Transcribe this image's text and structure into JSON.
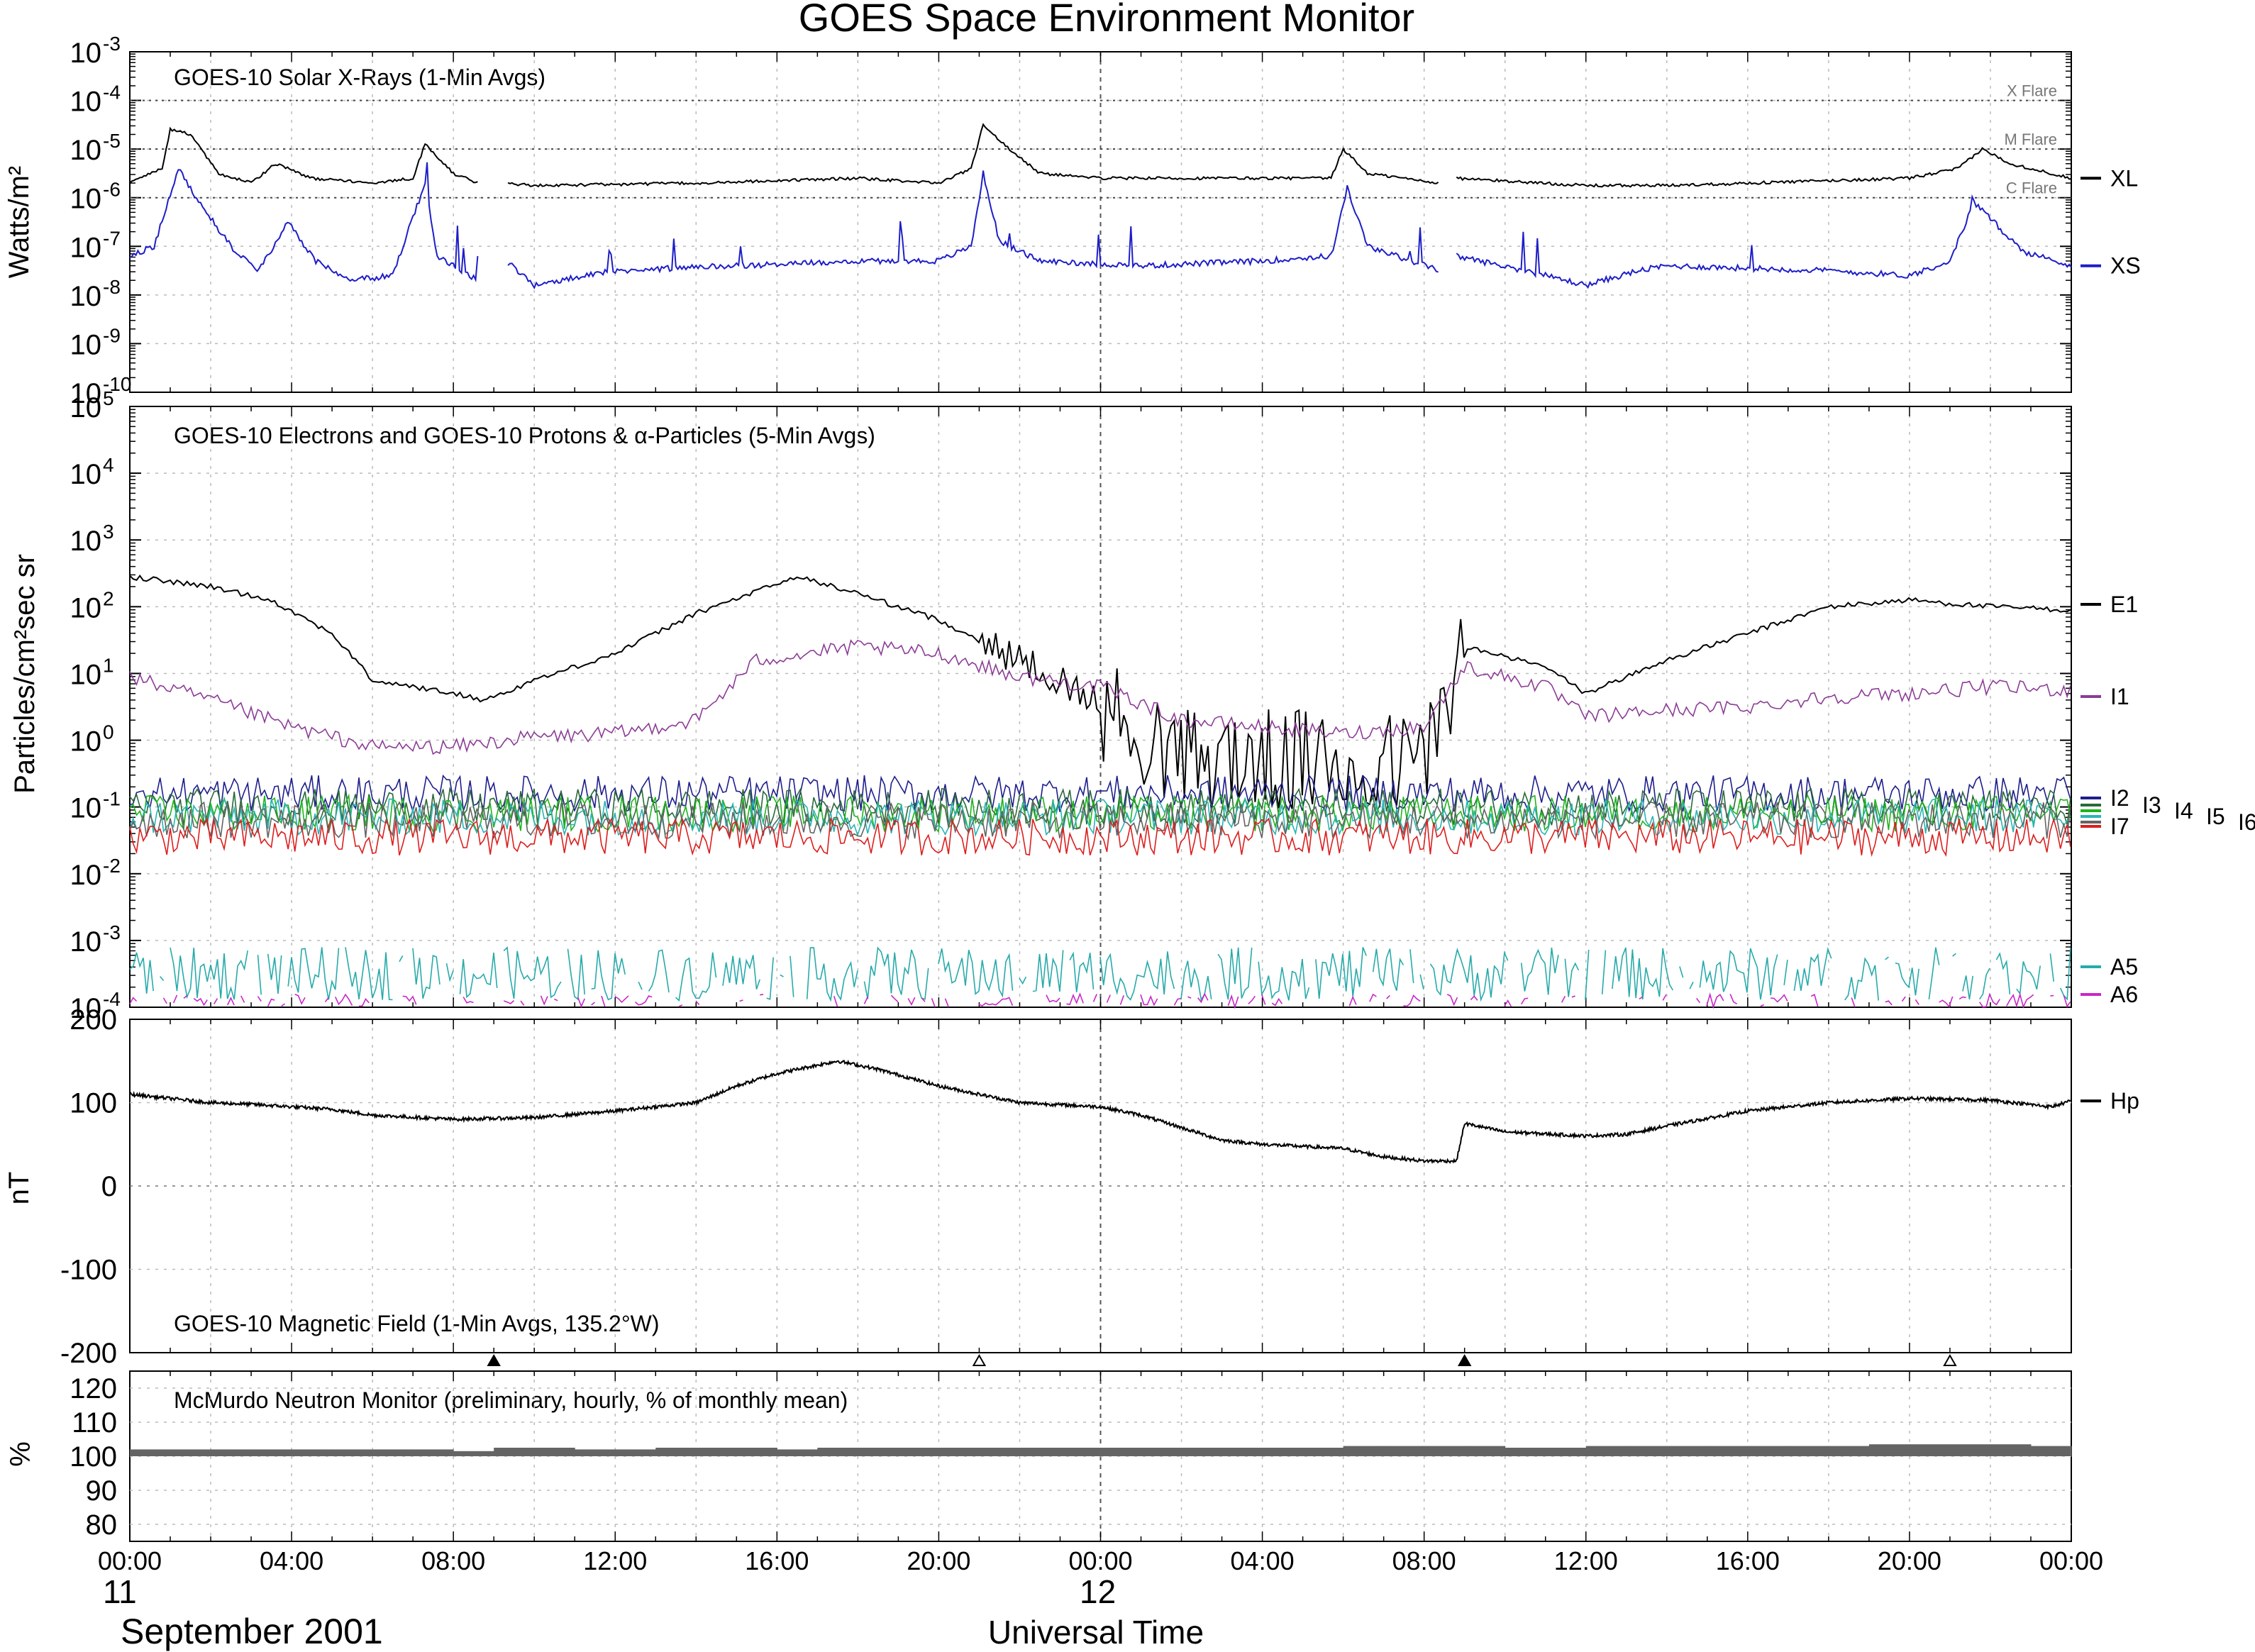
{
  "title": "GOES Space Environment Monitor",
  "x_axis": {
    "tick_labels": [
      "00:00",
      "04:00",
      "08:00",
      "12:00",
      "16:00",
      "20:00",
      "00:00",
      "04:00",
      "08:00",
      "12:00",
      "16:00",
      "20:00",
      "00:00"
    ],
    "day_labels": [
      "11",
      "12"
    ],
    "month_label": "September 2001",
    "xlabel": "Universal Time"
  },
  "chart_data": [
    {
      "type": "line",
      "title": "GOES-10 Solar X-Rays (1-Min Avgs)",
      "ylabel": "Watts/m²",
      "yscale": "log",
      "ylim": [
        1e-10,
        0.001
      ],
      "ytick_bases": [
        "10",
        "10",
        "10",
        "10",
        "10",
        "10",
        "10",
        "10"
      ],
      "ytick_exps": [
        "-3",
        "-4",
        "-5",
        "-6",
        "-7",
        "-8",
        "-9",
        "-10"
      ],
      "xlim_hours": [
        0,
        48
      ],
      "thresholds": [
        {
          "label": "X Flare",
          "value": 0.0001
        },
        {
          "label": "M Flare",
          "value": 1e-05
        },
        {
          "label": "C Flare",
          "value": 1e-06
        }
      ],
      "series": [
        {
          "name": "XL",
          "color": "#000000",
          "gaps": [
            [
              8.6,
              9.3
            ],
            [
              32.4,
              32.8
            ]
          ],
          "points": [
            [
              0,
              -5.7
            ],
            [
              0.8,
              -5.4
            ],
            [
              1.0,
              -4.6
            ],
            [
              1.5,
              -4.7
            ],
            [
              2.2,
              -5.5
            ],
            [
              3.0,
              -5.7
            ],
            [
              3.6,
              -5.3
            ],
            [
              4.5,
              -5.6
            ],
            [
              6.0,
              -5.7
            ],
            [
              7.0,
              -5.6
            ],
            [
              7.3,
              -4.9
            ],
            [
              8.0,
              -5.5
            ],
            [
              8.6,
              -5.7
            ],
            [
              9.3,
              -5.7
            ],
            [
              10,
              -5.75
            ],
            [
              14,
              -5.7
            ],
            [
              18,
              -5.6
            ],
            [
              20,
              -5.7
            ],
            [
              20.8,
              -5.4
            ],
            [
              21.1,
              -4.5
            ],
            [
              21.6,
              -4.9
            ],
            [
              22.5,
              -5.5
            ],
            [
              24,
              -5.6
            ],
            [
              28,
              -5.6
            ],
            [
              29.7,
              -5.6
            ],
            [
              30.0,
              -5.0
            ],
            [
              30.6,
              -5.5
            ],
            [
              32.4,
              -5.7
            ],
            [
              32.8,
              -5.6
            ],
            [
              36,
              -5.75
            ],
            [
              38,
              -5.75
            ],
            [
              40,
              -5.7
            ],
            [
              44,
              -5.6
            ],
            [
              45.2,
              -5.4
            ],
            [
              45.8,
              -5.0
            ],
            [
              46.5,
              -5.3
            ],
            [
              48,
              -5.6
            ]
          ]
        },
        {
          "name": "XS",
          "color": "#1e1ec8",
          "gaps": [
            [
              8.6,
              9.3
            ],
            [
              32.4,
              32.8
            ]
          ],
          "points": [
            [
              0,
              -7.2
            ],
            [
              0.6,
              -7.0
            ],
            [
              1.2,
              -5.4
            ],
            [
              1.8,
              -6.2
            ],
            [
              2.5,
              -7.0
            ],
            [
              3.2,
              -7.5
            ],
            [
              3.9,
              -6.5
            ],
            [
              4.6,
              -7.3
            ],
            [
              5.5,
              -7.7
            ],
            [
              6.5,
              -7.6
            ],
            [
              7.3,
              -5.7
            ],
            [
              7.6,
              -7.2
            ],
            [
              8.6,
              -7.7
            ],
            [
              9.3,
              -7.3
            ],
            [
              10,
              -7.8
            ],
            [
              12,
              -7.5
            ],
            [
              15,
              -7.4
            ],
            [
              18,
              -7.3
            ],
            [
              20,
              -7.3
            ],
            [
              20.8,
              -7.0
            ],
            [
              21.1,
              -5.5
            ],
            [
              21.5,
              -6.9
            ],
            [
              22.5,
              -7.3
            ],
            [
              25,
              -7.4
            ],
            [
              28,
              -7.3
            ],
            [
              29.7,
              -7.2
            ],
            [
              30.1,
              -5.8
            ],
            [
              30.6,
              -7.0
            ],
            [
              32.4,
              -7.5
            ],
            [
              32.8,
              -7.2
            ],
            [
              34.5,
              -7.5
            ],
            [
              36,
              -7.8
            ],
            [
              37.3,
              -7.5
            ],
            [
              38,
              -7.4
            ],
            [
              42,
              -7.5
            ],
            [
              44,
              -7.6
            ],
            [
              45,
              -7.3
            ],
            [
              45.6,
              -6.1
            ],
            [
              46.8,
              -7.1
            ],
            [
              48,
              -7.4
            ]
          ]
        }
      ]
    },
    {
      "type": "line",
      "title": "GOES-10 Electrons and GOES-10 Protons & α-Particles (5-Min Avgs)",
      "ylabel": "Particles/cm²sec sr",
      "yscale": "log",
      "ylim": [
        0.0001,
        100000.0
      ],
      "ytick_bases": [
        "10",
        "10",
        "10",
        "10",
        "10",
        "10",
        "10",
        "10",
        "10",
        "10"
      ],
      "ytick_exps": [
        "5",
        "4",
        "3",
        "2",
        "1",
        "0",
        "-1",
        "-2",
        "-3",
        "-4"
      ],
      "xlim_hours": [
        0,
        48
      ],
      "series": [
        {
          "name": "E1",
          "color": "#000000",
          "points": [
            [
              0,
              2.45
            ],
            [
              2,
              2.3
            ],
            [
              3.5,
              2.1
            ],
            [
              5,
              1.6
            ],
            [
              6,
              0.9
            ],
            [
              7,
              0.8
            ],
            [
              8,
              0.7
            ],
            [
              8.8,
              0.6
            ],
            [
              10,
              0.9
            ],
            [
              12,
              1.3
            ],
            [
              14,
              1.9
            ],
            [
              16.5,
              2.45
            ],
            [
              18,
              2.2
            ],
            [
              20,
              1.8
            ],
            [
              21,
              1.5
            ],
            [
              22,
              1.2
            ],
            [
              23,
              0.9
            ],
            [
              24,
              0.5
            ],
            [
              26,
              -0.3
            ],
            [
              28,
              -0.3
            ],
            [
              30,
              -0.4
            ],
            [
              32,
              -0.3
            ],
            [
              33,
              1.4
            ],
            [
              35,
              1.1
            ],
            [
              36,
              0.7
            ],
            [
              38,
              1.2
            ],
            [
              40,
              1.6
            ],
            [
              42,
              2.0
            ],
            [
              44,
              2.1
            ],
            [
              46,
              2.0
            ],
            [
              48,
              1.95
            ]
          ]
        },
        {
          "name": "I1",
          "color": "#8c3c96",
          "points": [
            [
              0,
              0.95
            ],
            [
              2,
              0.6
            ],
            [
              4,
              0.2
            ],
            [
              6,
              -0.1
            ],
            [
              8,
              -0.1
            ],
            [
              10,
              0.05
            ],
            [
              12,
              0.1
            ],
            [
              14,
              0.3
            ],
            [
              15.5,
              1.2
            ],
            [
              18,
              1.4
            ],
            [
              20,
              1.3
            ],
            [
              22,
              0.95
            ],
            [
              24,
              0.8
            ],
            [
              26,
              0.3
            ],
            [
              28,
              0.2
            ],
            [
              30,
              0.1
            ],
            [
              32,
              0.2
            ],
            [
              33,
              1.1
            ],
            [
              35,
              0.8
            ],
            [
              36,
              0.35
            ],
            [
              38,
              0.45
            ],
            [
              40,
              0.5
            ],
            [
              42,
              0.65
            ],
            [
              44,
              0.7
            ],
            [
              46,
              0.8
            ],
            [
              48,
              0.75
            ]
          ]
        },
        {
          "name": "I2",
          "color": "#1e1e8c",
          "points": [
            [
              0,
              -0.8
            ],
            [
              48,
              -0.8
            ]
          ]
        },
        {
          "name": "I3",
          "color": "#2a6a3a",
          "points": [
            [
              0,
              -1.0
            ],
            [
              48,
              -1.0
            ]
          ]
        },
        {
          "name": "I4",
          "color": "#1eb41e",
          "points": [
            [
              0,
              -1.1
            ],
            [
              48,
              -1.1
            ]
          ]
        },
        {
          "name": "I5",
          "color": "#2ab4b4",
          "points": [
            [
              0,
              -1.15
            ],
            [
              48,
              -1.15
            ]
          ]
        },
        {
          "name": "I6",
          "color": "#646464",
          "points": [
            [
              0,
              -1.2
            ],
            [
              48,
              -1.2
            ]
          ]
        },
        {
          "name": "I7",
          "color": "#dc1e1e",
          "points": [
            [
              0,
              -1.45
            ],
            [
              48,
              -1.45
            ]
          ]
        },
        {
          "name": "A5",
          "color": "#28aaaa",
          "points": [
            [
              0,
              -3.5
            ],
            [
              48,
              -3.5
            ]
          ]
        },
        {
          "name": "A6",
          "color": "#c828c8",
          "points": [
            [
              0,
              -3.95
            ],
            [
              48,
              -3.95
            ]
          ]
        }
      ],
      "legend_order": [
        "E1",
        "I1",
        "I2",
        "I3",
        "I4",
        "I5",
        "I6",
        "I7",
        "A5",
        "A6"
      ]
    },
    {
      "type": "line",
      "title": "GOES-10 Magnetic Field (1-Min Avgs, 135.2°W)",
      "ylabel": "nT",
      "yscale": "linear",
      "ylim": [
        -200,
        200
      ],
      "ytick_labels": [
        "200",
        "100",
        "0",
        "-100",
        "-200"
      ],
      "xlim_hours": [
        0,
        48
      ],
      "markers": [
        {
          "x": 9,
          "filled": true
        },
        {
          "x": 21,
          "filled": false
        },
        {
          "x": 33,
          "filled": true
        },
        {
          "x": 45,
          "filled": false
        }
      ],
      "series": [
        {
          "name": "Hp",
          "color": "#000000",
          "points": [
            [
              0,
              110
            ],
            [
              2,
              100
            ],
            [
              3,
              98
            ],
            [
              4,
              95
            ],
            [
              5,
              92
            ],
            [
              6,
              85
            ],
            [
              8,
              80
            ],
            [
              10,
              82
            ],
            [
              12,
              90
            ],
            [
              14,
              100
            ],
            [
              15,
              120
            ],
            [
              16,
              135
            ],
            [
              17.5,
              150
            ],
            [
              18.5,
              140
            ],
            [
              20,
              120
            ],
            [
              21,
              110
            ],
            [
              22,
              100
            ],
            [
              24,
              95
            ],
            [
              25,
              85
            ],
            [
              26,
              70
            ],
            [
              27,
              55
            ],
            [
              28,
              50
            ],
            [
              30,
              45
            ],
            [
              31,
              35
            ],
            [
              32,
              30
            ],
            [
              32.8,
              30
            ],
            [
              33,
              75
            ],
            [
              34,
              65
            ],
            [
              36,
              60
            ],
            [
              37,
              62
            ],
            [
              38,
              72
            ],
            [
              40,
              90
            ],
            [
              42,
              100
            ],
            [
              44,
              105
            ],
            [
              46,
              103
            ],
            [
              47.5,
              95
            ],
            [
              48,
              102
            ]
          ]
        }
      ]
    },
    {
      "type": "area",
      "title": "McMurdo Neutron Monitor (preliminary, hourly, % of monthly mean)",
      "ylabel": "%",
      "yscale": "linear",
      "ylim": [
        75,
        125
      ],
      "ytick_labels": [
        "120",
        "110",
        "100",
        "90",
        "80"
      ],
      "xlim_hours": [
        0,
        48
      ],
      "series": [
        {
          "name": "McMurdo",
          "color": "#646464",
          "band_low": 100,
          "values": [
            102,
            102,
            102,
            102,
            102,
            102,
            102,
            102,
            101.5,
            102.5,
            102.5,
            102,
            102,
            102.5,
            102.5,
            102.5,
            102,
            102.5,
            102.5,
            102.5,
            102.5,
            102.5,
            102.5,
            102.5,
            102.5,
            102.5,
            102.5,
            102.5,
            102.5,
            102.5,
            103,
            103,
            103,
            103,
            102.5,
            102.5,
            103,
            103,
            103,
            103,
            103,
            103,
            103,
            103.5,
            103.5,
            103.5,
            103.5,
            103
          ]
        }
      ]
    }
  ]
}
